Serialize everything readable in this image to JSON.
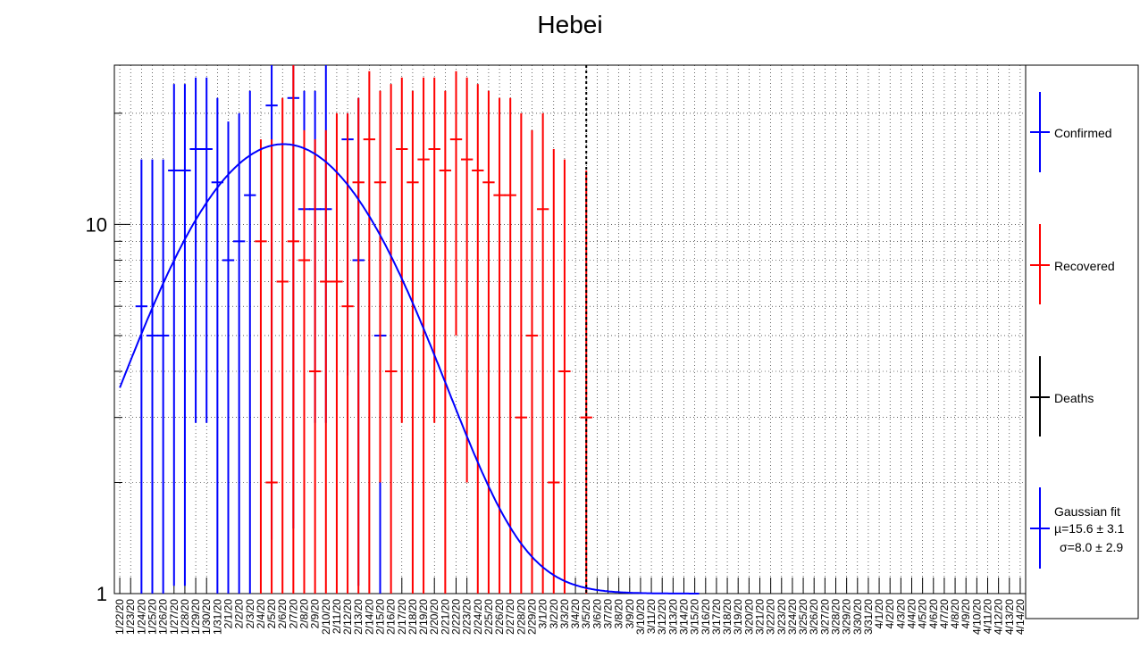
{
  "chart_data": {
    "type": "scatter",
    "title": "Hebei",
    "xlabel": "",
    "ylabel": "",
    "y_scale": "log",
    "ylim": [
      1,
      27
    ],
    "y_ticks": [
      1,
      10
    ],
    "y_tick_labels": [
      "1",
      "10"
    ],
    "grid": true,
    "legend_position": "right",
    "categories": [
      "1/22/20",
      "1/23/20",
      "1/24/20",
      "1/25/20",
      "1/26/20",
      "1/27/20",
      "1/28/20",
      "1/29/20",
      "1/30/20",
      "1/31/20",
      "2/1/20",
      "2/2/20",
      "2/3/20",
      "2/4/20",
      "2/5/20",
      "2/6/20",
      "2/7/20",
      "2/8/20",
      "2/9/20",
      "2/10/20",
      "2/11/20",
      "2/12/20",
      "2/13/20",
      "2/14/20",
      "2/15/20",
      "2/16/20",
      "2/17/20",
      "2/18/20",
      "2/19/20",
      "2/20/20",
      "2/21/20",
      "2/22/20",
      "2/23/20",
      "2/24/20",
      "2/25/20",
      "2/26/20",
      "2/27/20",
      "2/28/20",
      "2/29/20",
      "3/1/20",
      "3/2/20",
      "3/3/20",
      "3/4/20",
      "3/5/20",
      "3/6/20",
      "3/7/20",
      "3/8/20",
      "3/9/20",
      "3/10/20",
      "3/11/20",
      "3/12/20",
      "3/13/20",
      "3/14/20",
      "3/15/20",
      "3/16/20",
      "3/17/20",
      "3/18/20",
      "3/19/20",
      "3/20/20",
      "3/21/20",
      "3/22/20",
      "3/23/20",
      "3/24/20",
      "3/25/20",
      "3/26/20",
      "3/27/20",
      "3/28/20",
      "3/29/20",
      "3/30/20",
      "3/31/20",
      "4/1/20",
      "4/2/20",
      "4/3/20",
      "4/4/20",
      "4/5/20",
      "4/6/20",
      "4/7/20",
      "4/8/20",
      "4/9/20",
      "4/10/20",
      "4/11/20",
      "4/12/20",
      "4/13/20",
      "4/14/20"
    ],
    "series": [
      {
        "name": "Confirmed",
        "color": "#0000ff",
        "points": [
          {
            "x": 2,
            "y": 6,
            "lo": 1,
            "hi": 15
          },
          {
            "x": 3,
            "y": 5,
            "lo": 1,
            "hi": 15
          },
          {
            "x": 4,
            "y": 5,
            "lo": 1,
            "hi": 15
          },
          {
            "x": 5,
            "y": 14,
            "lo": 1.05,
            "hi": 24
          },
          {
            "x": 6,
            "y": 14,
            "lo": 1.05,
            "hi": 24
          },
          {
            "x": 7,
            "y": 16,
            "lo": 2.9,
            "hi": 25
          },
          {
            "x": 8,
            "y": 16,
            "lo": 2.9,
            "hi": 25
          },
          {
            "x": 9,
            "y": 13,
            "lo": 1,
            "hi": 22
          },
          {
            "x": 10,
            "y": 8,
            "lo": 1,
            "hi": 19
          },
          {
            "x": 11,
            "y": 9,
            "lo": 1,
            "hi": 20
          },
          {
            "x": 12,
            "y": 12,
            "lo": 1,
            "hi": 23
          },
          {
            "x": 14,
            "y": 21,
            "lo": 1.4,
            "hi": 27
          },
          {
            "x": 16,
            "y": 22,
            "lo": 1.5,
            "hi": 27
          },
          {
            "x": 17,
            "y": 11,
            "lo": 2.9,
            "hi": 23
          },
          {
            "x": 18,
            "y": 11,
            "lo": 2.9,
            "hi": 23
          },
          {
            "x": 19,
            "y": 11,
            "lo": 2.9,
            "hi": 27
          },
          {
            "x": 21,
            "y": 17,
            "lo": 3.9,
            "hi": 20
          },
          {
            "x": 22,
            "y": 8,
            "lo": 1.05,
            "hi": 22
          },
          {
            "x": 24,
            "y": 5,
            "lo": 1,
            "hi": 11
          }
        ]
      },
      {
        "name": "Recovered",
        "color": "#ff0000",
        "points": [
          {
            "x": 13,
            "y": 9,
            "lo": 1,
            "hi": 17
          },
          {
            "x": 14,
            "y": 2,
            "lo": 1,
            "hi": 17
          },
          {
            "x": 15,
            "y": 7,
            "lo": 1,
            "hi": 22
          },
          {
            "x": 16,
            "y": 9,
            "lo": 1,
            "hi": 27
          },
          {
            "x": 17,
            "y": 8,
            "lo": 1,
            "hi": 18
          },
          {
            "x": 18,
            "y": 4,
            "lo": 1,
            "hi": 17
          },
          {
            "x": 19,
            "y": 7,
            "lo": 1,
            "hi": 18
          },
          {
            "x": 20,
            "y": 7,
            "lo": 1,
            "hi": 20
          },
          {
            "x": 21,
            "y": 6,
            "lo": 1,
            "hi": 20
          },
          {
            "x": 22,
            "y": 13,
            "lo": 1,
            "hi": 22
          },
          {
            "x": 23,
            "y": 17,
            "lo": 1,
            "hi": 26
          },
          {
            "x": 24,
            "y": 13,
            "lo": 2,
            "hi": 23
          },
          {
            "x": 25,
            "y": 4,
            "lo": 1,
            "hi": 24
          },
          {
            "x": 26,
            "y": 16,
            "lo": 2.9,
            "hi": 25
          },
          {
            "x": 27,
            "y": 13,
            "lo": 1,
            "hi": 23
          },
          {
            "x": 28,
            "y": 15,
            "lo": 1,
            "hi": 25
          },
          {
            "x": 29,
            "y": 16,
            "lo": 2.9,
            "hi": 25
          },
          {
            "x": 30,
            "y": 14,
            "lo": 1,
            "hi": 23
          },
          {
            "x": 31,
            "y": 17,
            "lo": 5,
            "hi": 26
          },
          {
            "x": 32,
            "y": 15,
            "lo": 2,
            "hi": 25
          },
          {
            "x": 33,
            "y": 14,
            "lo": 1,
            "hi": 24
          },
          {
            "x": 34,
            "y": 13,
            "lo": 1,
            "hi": 23
          },
          {
            "x": 35,
            "y": 12,
            "lo": 1,
            "hi": 22
          },
          {
            "x": 36,
            "y": 12,
            "lo": 1,
            "hi": 22
          },
          {
            "x": 37,
            "y": 3,
            "lo": 1,
            "hi": 20
          },
          {
            "x": 38,
            "y": 5,
            "lo": 1,
            "hi": 18
          },
          {
            "x": 39,
            "y": 11,
            "lo": 1,
            "hi": 20
          },
          {
            "x": 40,
            "y": 2,
            "lo": 1,
            "hi": 16
          },
          {
            "x": 41,
            "y": 4,
            "lo": 1,
            "hi": 15
          },
          {
            "x": 43,
            "y": 3,
            "lo": 1,
            "hi": 14
          }
        ]
      },
      {
        "name": "Deaths",
        "color": "#000000",
        "points": []
      },
      {
        "name": "Gaussian fit",
        "color": "#0000ff",
        "type": "line",
        "mu": 15.6,
        "sigma": 8.0,
        "x_range": [
          0.5,
          54
        ]
      }
    ],
    "legend": [
      {
        "label": "Confirmed",
        "color": "#0000ff"
      },
      {
        "label": "Recovered",
        "color": "#ff0000"
      },
      {
        "label": "Deaths",
        "color": "#000000"
      },
      {
        "label": "Gaussian fit",
        "sublines": [
          "µ=15.6  ± 3.1",
          "σ=8.0  ± 2.9"
        ],
        "color": "#0000ff"
      }
    ],
    "annotations": [
      {
        "type": "vertical-dashed-line",
        "x": 43.5,
        "color": "#000000"
      }
    ]
  }
}
